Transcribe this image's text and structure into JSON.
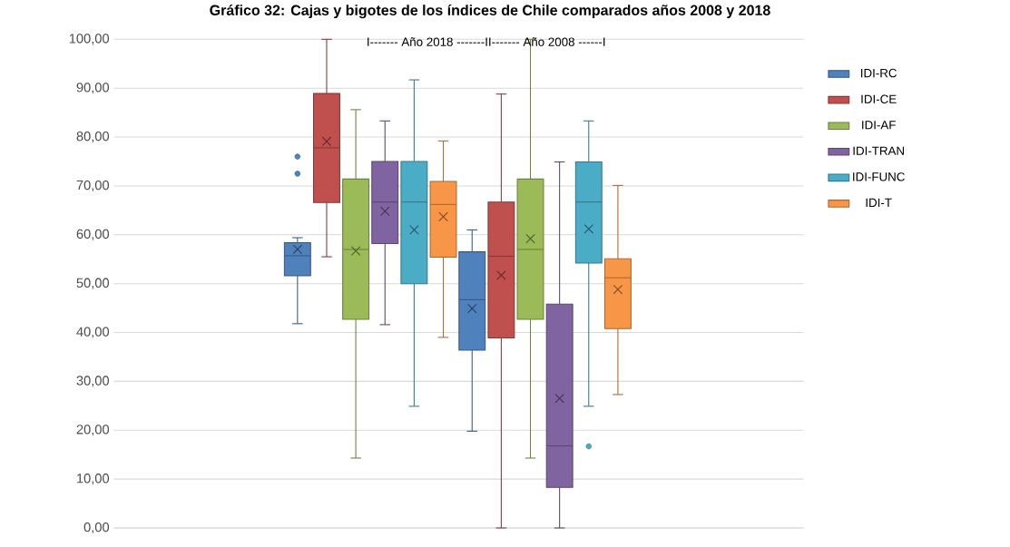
{
  "chart_data": {
    "type": "box",
    "title": "Gráfico 32: Cajas y bigotes de los índices de Chile comparados años 2008 y 2018",
    "annotations": [
      "I------- Año 2018 -------II------- Año 2008 ------I"
    ],
    "categories": [
      null,
      null
    ],
    "ylim": [
      0,
      100
    ],
    "yticks": [
      {
        "value": 0,
        "label": "0,00"
      },
      {
        "value": 10,
        "label": "10,00"
      },
      {
        "value": 20,
        "label": "20,00"
      },
      {
        "value": 30,
        "label": "30,00"
      },
      {
        "value": 40,
        "label": "40,00"
      },
      {
        "value": 50,
        "label": "50,00"
      },
      {
        "value": 60,
        "label": "60,00"
      },
      {
        "value": 70,
        "label": "70,00"
      },
      {
        "value": 80,
        "label": "80,00"
      },
      {
        "value": 90,
        "label": "90,00"
      },
      {
        "value": 100,
        "label": "100,00"
      }
    ],
    "grid": "y",
    "legend": "right",
    "series": [
      {
        "name": "IDI-RC",
        "color": "#4f81bd",
        "boxes": [
          {
            "low": 41.8,
            "q1": 51.6,
            "median": 55.7,
            "q3": 58.4,
            "high": 59.4,
            "mean": 57.0,
            "outliers": [
              76.0,
              72.5
            ]
          },
          {
            "low": 19.8,
            "q1": 36.4,
            "median": 46.7,
            "q3": 56.5,
            "high": 61.0,
            "mean": 44.9
          }
        ]
      },
      {
        "name": "IDI-CE",
        "color": "#c0504d",
        "boxes": [
          {
            "low": 55.5,
            "q1": 66.6,
            "median": 77.8,
            "q3": 88.9,
            "high": 100,
            "mean": 79.1
          },
          {
            "low": 0,
            "q1": 38.9,
            "median": 55.6,
            "q3": 66.7,
            "high": 88.8,
            "mean": 51.7
          }
        ]
      },
      {
        "name": "IDI-AF",
        "color": "#9bbb59",
        "boxes": [
          {
            "low": 14.3,
            "q1": 42.7,
            "median": 57.0,
            "q3": 71.4,
            "high": 85.6,
            "mean": 56.7
          },
          {
            "low": 14.3,
            "q1": 42.7,
            "median": 57.0,
            "q3": 71.4,
            "high": 100,
            "mean": 59.2
          }
        ]
      },
      {
        "name": "IDI-TRAN",
        "color": "#8064a2",
        "boxes": [
          {
            "low": 41.6,
            "q1": 58.2,
            "median": 66.7,
            "q3": 75.0,
            "high": 83.3,
            "mean": 64.8
          },
          {
            "low": 0,
            "q1": 8.3,
            "median": 16.8,
            "q3": 45.8,
            "high": 74.9,
            "mean": 26.5
          }
        ]
      },
      {
        "name": "IDI-FUNC",
        "color": "#4bacc6",
        "boxes": [
          {
            "low": 24.9,
            "q1": 50.0,
            "median": 66.7,
            "q3": 75.0,
            "high": 91.7,
            "mean": 61.0
          },
          {
            "low": 24.9,
            "q1": 54.2,
            "median": 66.7,
            "q3": 74.9,
            "high": 83.3,
            "mean": 61.2,
            "outliers": [
              16.7
            ]
          }
        ]
      },
      {
        "name": "IDI-T",
        "color": "#f79646",
        "boxes": [
          {
            "low": 39.0,
            "q1": 55.4,
            "median": 66.2,
            "q3": 70.9,
            "high": 79.2,
            "mean": 63.7
          },
          {
            "low": 27.3,
            "q1": 40.8,
            "median": 51.2,
            "q3": 55.1,
            "high": 70.1,
            "mean": 48.8
          }
        ]
      }
    ]
  }
}
